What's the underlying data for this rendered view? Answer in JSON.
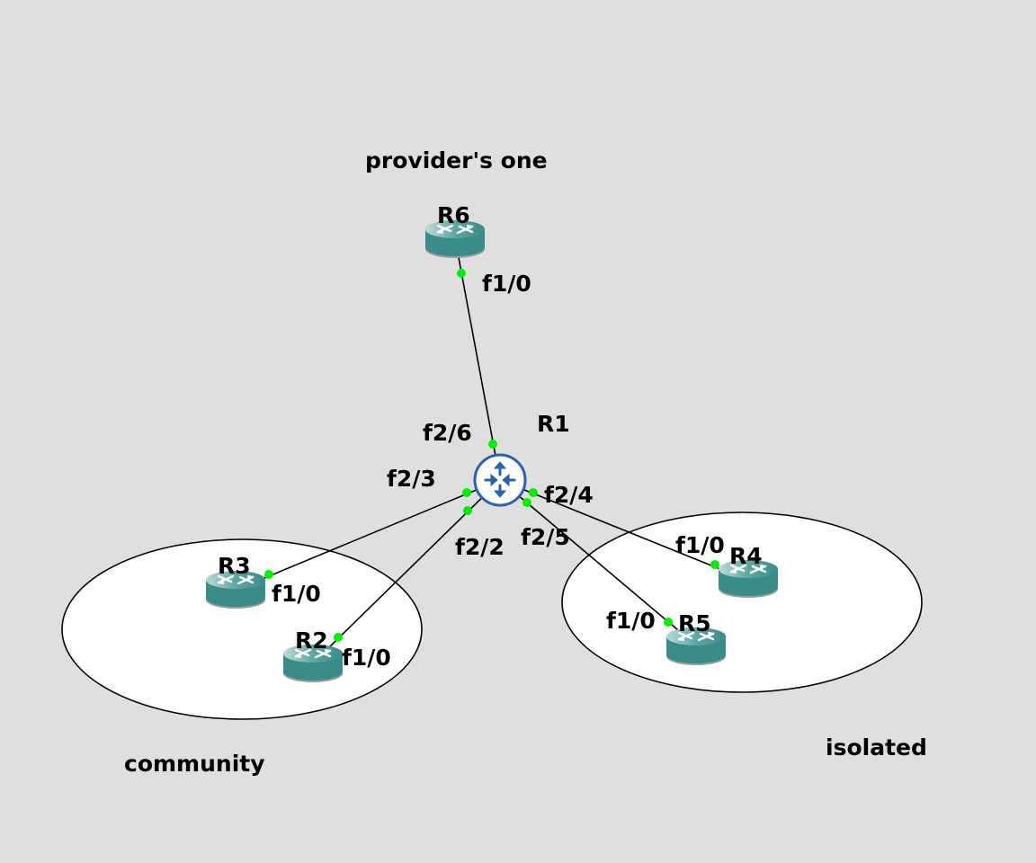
{
  "diagram": {
    "areas": [
      {
        "id": "provider",
        "label": "provider's one"
      },
      {
        "id": "community",
        "label": "community"
      },
      {
        "id": "isolated",
        "label": "isolated"
      }
    ],
    "nodes": [
      {
        "id": "R1",
        "label": "R1",
        "icon": "switch-icon"
      },
      {
        "id": "R2",
        "label": "R2",
        "icon": "router-icon"
      },
      {
        "id": "R3",
        "label": "R3",
        "icon": "router-icon"
      },
      {
        "id": "R4",
        "label": "R4",
        "icon": "router-icon"
      },
      {
        "id": "R5",
        "label": "R5",
        "icon": "router-icon"
      },
      {
        "id": "R6",
        "label": "R6",
        "icon": "router-icon"
      }
    ],
    "links": [
      {
        "from": "R1",
        "from_if": "f2/6",
        "to": "R6",
        "to_if": "f1/0"
      },
      {
        "from": "R1",
        "from_if": "f2/3",
        "to": "R3",
        "to_if": "f1/0"
      },
      {
        "from": "R1",
        "from_if": "f2/2",
        "to": "R2",
        "to_if": "f1/0"
      },
      {
        "from": "R1",
        "from_if": "f2/4",
        "to": "R4",
        "to_if": "f1/0"
      },
      {
        "from": "R1",
        "from_if": "f2/5",
        "to": "R5",
        "to_if": "f1/0"
      }
    ],
    "colors": {
      "background": "#dfdfdf",
      "router_body": "#3a8c88",
      "switch_outline": "#2a62b0",
      "port_dot": "#00ee00"
    }
  }
}
